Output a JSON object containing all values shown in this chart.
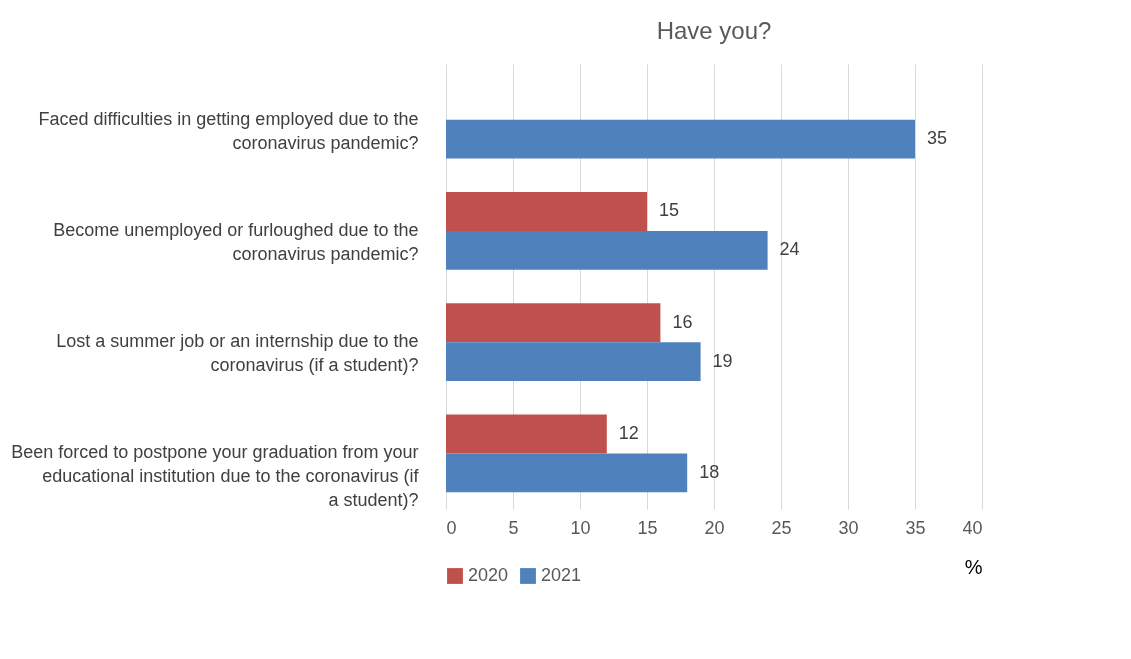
{
  "chart_data": {
    "type": "bar",
    "orientation": "horizontal",
    "title": "Have you?",
    "xlabel": "%",
    "categories": [
      "Faced difficulties in getting employed due to the coronavirus pandemic?",
      "Become unemployed or furloughed due to the coronavirus pandemic?",
      "Lost a summer job or an internship due to the coronavirus (if a student)?",
      "Been forced to postpone your graduation from your educational institution due to the coronavirus (if a student)?"
    ],
    "series": [
      {
        "name": "2020",
        "color": "#c0504d",
        "values": [
          null,
          15,
          16,
          12
        ]
      },
      {
        "name": "2021",
        "color": "#4f81bd",
        "values": [
          35,
          24,
          19,
          18
        ]
      }
    ],
    "xlim": [
      0,
      40
    ],
    "xticks": [
      0,
      5,
      10,
      15,
      20,
      25,
      30,
      35,
      40
    ],
    "grid": "x",
    "legend": "bottom",
    "data_labels": true
  }
}
